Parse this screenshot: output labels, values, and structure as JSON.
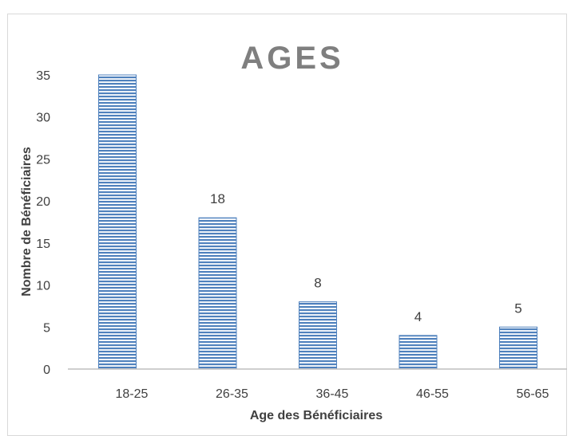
{
  "chart_data": {
    "type": "bar",
    "title": "AGES",
    "xlabel": "Age des Bénéficiaires",
    "ylabel": "Nombre de Bénéficiaires",
    "categories": [
      "18-25",
      "26-35",
      "36-45",
      "46-55",
      "56-65"
    ],
    "values": [
      35,
      18,
      8,
      4,
      5
    ],
    "data_labels": [
      "",
      "18",
      "8",
      "4",
      "5"
    ],
    "ylim": [
      0,
      35
    ],
    "yticks": [
      0,
      5,
      10,
      15,
      20,
      25,
      30,
      35
    ],
    "grid": false,
    "legend": "none",
    "bar_color": "#4f81bd",
    "bar_pattern": "horizontal-stripes"
  }
}
